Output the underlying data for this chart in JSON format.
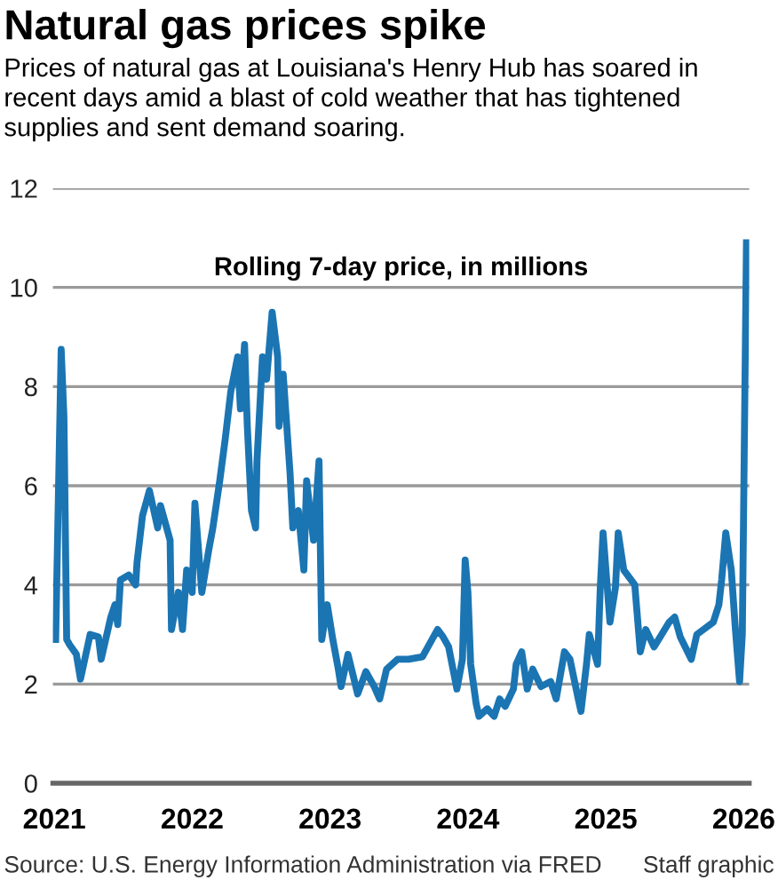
{
  "chart_data": {
    "type": "line",
    "title": "Natural gas prices spike",
    "subtitle": "Prices of natural gas at Louisiana's Henry Hub has soared in recent days amid a blast of cold weather that has tightened supplies and sent demand soaring.",
    "ylabel": "Rolling 7-day price, in millions",
    "annotations": [
      "Source: U.S. Energy Information Administration via FRED",
      "Staff graphic"
    ],
    "xlim": [
      2020.99,
      2026.04
    ],
    "xticks": [
      2021,
      2022,
      2023,
      2024,
      2025,
      2026
    ],
    "ylim": [
      0,
      12
    ],
    "yticks": [
      0,
      2,
      4,
      6,
      8,
      10,
      12
    ],
    "grid": "y",
    "legend": false,
    "marker": "none",
    "line_style": "solid",
    "series": [
      {
        "color": "#1b75b3",
        "x": [
          2021.01,
          2021.05,
          2021.07,
          2021.09,
          2021.11,
          2021.16,
          2021.19,
          2021.26,
          2021.32,
          2021.34,
          2021.41,
          2021.44,
          2021.46,
          2021.48,
          2021.54,
          2021.59,
          2021.6,
          2021.64,
          2021.69,
          2021.75,
          2021.77,
          2021.84,
          2021.85,
          2021.9,
          2021.93,
          2021.96,
          2022.0,
          2022.02,
          2022.07,
          2022.12,
          2022.15,
          2022.2,
          2022.24,
          2022.28,
          2022.33,
          2022.35,
          2022.38,
          2022.4,
          2022.43,
          2022.46,
          2022.47,
          2022.51,
          2022.54,
          2022.58,
          2022.62,
          2022.63,
          2022.66,
          2022.71,
          2022.73,
          2022.77,
          2022.81,
          2022.83,
          2022.88,
          2022.92,
          2022.94,
          2022.98,
          2023.02,
          2023.06,
          2023.08,
          2023.13,
          2023.2,
          2023.26,
          2023.32,
          2023.36,
          2023.41,
          2023.49,
          2023.57,
          2023.67,
          2023.78,
          2023.82,
          2023.86,
          2023.92,
          2023.96,
          2023.98,
          2024.0,
          2024.02,
          2024.06,
          2024.08,
          2024.14,
          2024.19,
          2024.23,
          2024.27,
          2024.33,
          2024.35,
          2024.39,
          2024.43,
          2024.47,
          2024.53,
          2024.6,
          2024.64,
          2024.7,
          2024.74,
          2024.8,
          2024.82,
          2024.86,
          2024.88,
          2024.94,
          2024.96,
          2024.98,
          2025.03,
          2025.07,
          2025.09,
          2025.13,
          2025.21,
          2025.25,
          2025.29,
          2025.35,
          2025.46,
          2025.5,
          2025.54,
          2025.62,
          2025.66,
          2025.78,
          2025.82,
          2025.84,
          2025.87,
          2025.91,
          2025.94,
          2025.97,
          2025.99,
          2026.02
        ],
        "values": [
          2.9,
          8.75,
          7.4,
          2.9,
          2.8,
          2.6,
          2.1,
          3.0,
          2.95,
          2.5,
          3.35,
          3.6,
          3.2,
          4.1,
          4.2,
          4.0,
          4.45,
          5.4,
          5.9,
          5.15,
          5.6,
          4.9,
          3.1,
          3.85,
          3.1,
          4.3,
          3.85,
          5.65,
          3.85,
          4.7,
          5.15,
          6.1,
          6.95,
          7.9,
          8.6,
          7.55,
          8.85,
          7.2,
          5.5,
          5.15,
          6.5,
          8.6,
          8.15,
          9.5,
          8.6,
          7.2,
          8.25,
          6.25,
          5.15,
          5.5,
          4.3,
          6.1,
          4.9,
          6.5,
          2.9,
          3.6,
          2.9,
          2.3,
          1.95,
          2.6,
          1.8,
          2.25,
          1.95,
          1.7,
          2.3,
          2.5,
          2.5,
          2.55,
          3.1,
          2.95,
          2.75,
          1.9,
          2.5,
          4.5,
          3.85,
          2.4,
          1.6,
          1.35,
          1.5,
          1.35,
          1.7,
          1.55,
          1.9,
          2.4,
          2.65,
          1.9,
          2.3,
          1.95,
          2.05,
          1.7,
          2.65,
          2.5,
          1.7,
          1.45,
          2.4,
          3.0,
          2.4,
          3.95,
          5.05,
          3.25,
          3.95,
          5.05,
          4.3,
          4.0,
          2.65,
          3.1,
          2.75,
          3.25,
          3.35,
          2.95,
          2.5,
          3.0,
          3.25,
          3.6,
          4.1,
          5.05,
          4.3,
          3.1,
          2.05,
          3.0,
          10.9
        ]
      }
    ]
  }
}
